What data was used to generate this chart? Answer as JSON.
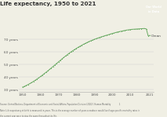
{
  "title": "Life expectancy, 1950 to 2021",
  "ylabel_ticks": [
    "30 years",
    "40 years",
    "50 years",
    "60 years",
    "70 years"
  ],
  "ytick_vals": [
    30,
    40,
    50,
    60,
    70
  ],
  "xtick_vals": [
    1950,
    1960,
    1970,
    1980,
    1990,
    2000,
    2010,
    2021
  ],
  "xlim": [
    1948,
    2023
  ],
  "ylim": [
    28,
    82
  ],
  "line_color": "#6aaa64",
  "bg_color": "#f0efe4",
  "plot_bg": "#f0efe4",
  "owid_bg": "#b5280e",
  "country_label": "Oman",
  "footer_source": "Source: United Nations, Department of Economic and Social Affairs, Population Division (2022); Human Mortality              1",
  "footer_note": "Note: Life expectancy at birth is measured in years. This is the average number of years a newborn would live if age-specific mortality rates in",
  "footer_note2": "the current year were to stay the same throughout its life.",
  "data_x": [
    1950,
    1951,
    1952,
    1953,
    1954,
    1955,
    1956,
    1957,
    1958,
    1959,
    1960,
    1961,
    1962,
    1963,
    1964,
    1965,
    1966,
    1967,
    1968,
    1969,
    1970,
    1971,
    1972,
    1973,
    1974,
    1975,
    1976,
    1977,
    1978,
    1979,
    1980,
    1981,
    1982,
    1983,
    1984,
    1985,
    1986,
    1987,
    1988,
    1989,
    1990,
    1991,
    1992,
    1993,
    1994,
    1995,
    1996,
    1997,
    1998,
    1999,
    2000,
    2001,
    2002,
    2003,
    2004,
    2005,
    2006,
    2007,
    2008,
    2009,
    2010,
    2011,
    2012,
    2013,
    2014,
    2015,
    2016,
    2017,
    2018,
    2019,
    2020,
    2021
  ],
  "data_y": [
    31.8,
    32.4,
    33.1,
    33.8,
    34.6,
    35.4,
    36.3,
    37.2,
    38.2,
    39.2,
    40.2,
    41.3,
    42.4,
    43.5,
    44.6,
    45.8,
    47.0,
    48.2,
    49.4,
    50.6,
    51.8,
    53.0,
    54.2,
    55.4,
    56.5,
    57.6,
    58.7,
    59.7,
    60.7,
    61.6,
    62.5,
    63.4,
    64.2,
    65.0,
    65.8,
    66.5,
    67.2,
    67.9,
    68.5,
    69.1,
    69.7,
    70.2,
    70.7,
    71.2,
    71.7,
    72.1,
    72.6,
    73.0,
    73.4,
    73.9,
    74.3,
    74.7,
    75.1,
    75.5,
    75.8,
    76.1,
    76.4,
    76.7,
    77.0,
    77.2,
    77.4,
    77.6,
    77.7,
    77.8,
    77.9,
    78.0,
    78.1,
    78.2,
    78.3,
    77.9,
    72.5,
    72.8
  ]
}
